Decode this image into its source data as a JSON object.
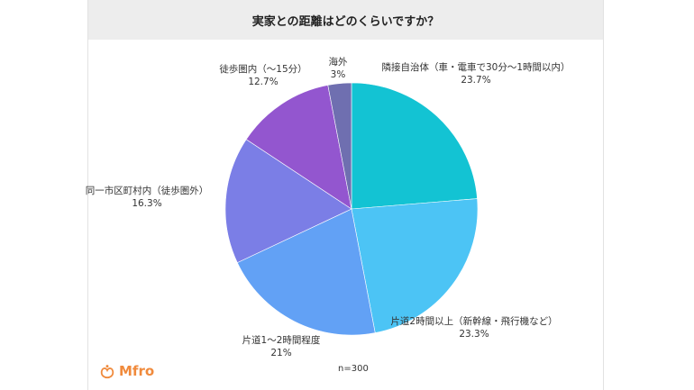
{
  "title": "実家との距離はどのくらいですか？",
  "note": "n=300",
  "logo": {
    "text": "Mfro",
    "icon": "mfro-logo-icon",
    "color": "#f08a3c"
  },
  "chart_data": {
    "type": "pie",
    "title": "実家との距離はどのくらいですか？",
    "start_angle_deg": 0,
    "direction": "clockwise",
    "slices": [
      {
        "name": "隣接自治体（車・電車で30分〜1時間以内）",
        "value": 23.7,
        "label": "23.7%",
        "color": "#13c3d3"
      },
      {
        "name": "片道2時間以上（新幹線・飛行機など）",
        "value": 23.3,
        "label": "23.3%",
        "color": "#4cc4f5"
      },
      {
        "name": "片道1〜2時間程度",
        "value": 21,
        "label": "21%",
        "color": "#62a1f5"
      },
      {
        "name": "同一市区町村内（徒歩圏外）",
        "value": 16.3,
        "label": "16.3%",
        "color": "#7b7ee6"
      },
      {
        "name": "徒歩圏内（〜15分）",
        "value": 12.7,
        "label": "12.7%",
        "color": "#9356cf"
      },
      {
        "name": "海外",
        "value": 3,
        "label": "3%",
        "color": "#6f6fb0"
      }
    ]
  }
}
